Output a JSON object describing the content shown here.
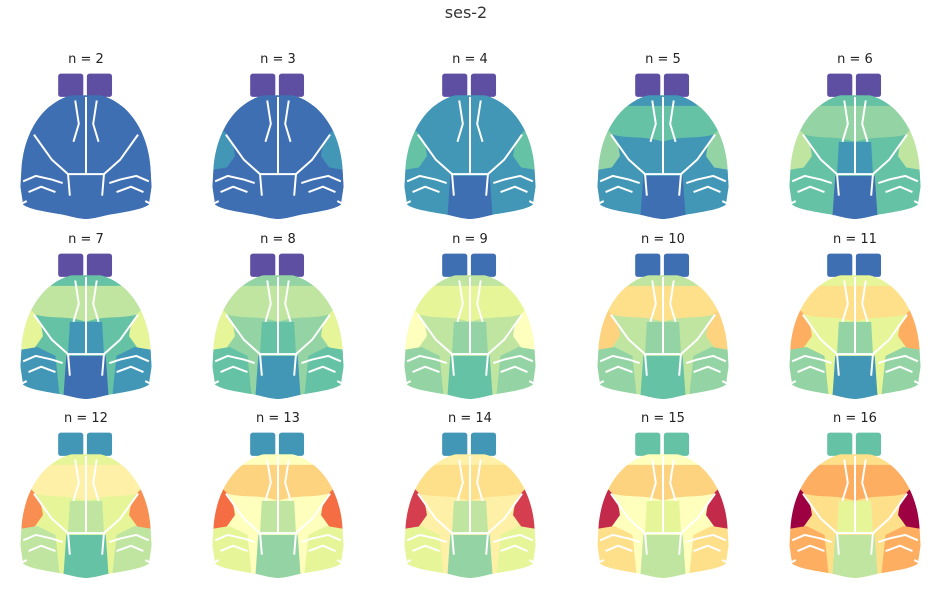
{
  "figure": {
    "title": "ses-2",
    "panels": [
      {
        "label": "n = 2",
        "colors": {
          "ob": "#5e4fa2",
          "front": "#3f6fb3",
          "mid": "#3f6fb3",
          "sideUpper": "#3f6fb3",
          "sideLower": "#3f6fb3",
          "center": "#3f6fb3",
          "post": "#3f6fb3"
        }
      },
      {
        "label": "n = 3",
        "colors": {
          "ob": "#5e4fa2",
          "front": "#3f6fb3",
          "mid": "#3f6fb3",
          "sideUpper": "#4297b7",
          "sideLower": "#3f6fb3",
          "center": "#3f6fb3",
          "post": "#3f6fb3"
        }
      },
      {
        "label": "n = 4",
        "colors": {
          "ob": "#5e4fa2",
          "front": "#4297b7",
          "mid": "#4297b7",
          "sideUpper": "#66c2a5",
          "sideLower": "#4297b7",
          "center": "#4297b7",
          "post": "#3f6fb3"
        }
      },
      {
        "label": "n = 5",
        "colors": {
          "ob": "#5e4fa2",
          "front": "#66c2a5",
          "mid": "#4297b7",
          "sideUpper": "#94d4a4",
          "sideLower": "#4297b7",
          "center": "#4297b7",
          "post": "#3f6fb3"
        }
      },
      {
        "label": "n = 6",
        "colors": {
          "ob": "#5e4fa2",
          "front": "#94d4a4",
          "mid": "#66c2a5",
          "sideUpper": "#bfe5a0",
          "sideLower": "#66c2a5",
          "center": "#4297b7",
          "post": "#3f6fb3"
        }
      },
      {
        "label": "n = 7",
        "colors": {
          "ob": "#5e4fa2",
          "front": "#bfe5a0",
          "mid": "#66c2a5",
          "sideUpper": "#e6f598",
          "sideLower": "#4297b7",
          "center": "#4297b7",
          "post": "#3f6fb3"
        }
      },
      {
        "label": "n = 8",
        "colors": {
          "ob": "#5e4fa2",
          "front": "#bfe5a0",
          "mid": "#94d4a4",
          "sideUpper": "#e6f598",
          "sideLower": "#66c2a5",
          "center": "#66c2a5",
          "post": "#4297b7"
        }
      },
      {
        "label": "n = 9",
        "colors": {
          "ob": "#3f6fb3",
          "front": "#e6f598",
          "mid": "#bfe5a0",
          "sideUpper": "#fefebd",
          "sideLower": "#94d4a4",
          "center": "#94d4a4",
          "post": "#66c2a5"
        }
      },
      {
        "label": "n = 10",
        "colors": {
          "ob": "#3f6fb3",
          "front": "#fee08b",
          "mid": "#bfe5a0",
          "sideUpper": "#fdd380",
          "sideLower": "#94d4a4",
          "center": "#94d4a4",
          "post": "#66c2a5"
        }
      },
      {
        "label": "n = 11",
        "colors": {
          "ob": "#3f6fb3",
          "front": "#fee08b",
          "mid": "#e6f598",
          "sideUpper": "#fdae61",
          "sideLower": "#94d4a4",
          "center": "#94d4a4",
          "post": "#4297b7"
        }
      },
      {
        "label": "n = 12",
        "colors": {
          "ob": "#4297b7",
          "front": "#fef0a6",
          "mid": "#e6f598",
          "sideUpper": "#f98e52",
          "sideLower": "#bfe5a0",
          "center": "#bfe5a0",
          "post": "#66c2a5"
        }
      },
      {
        "label": "n = 13",
        "colors": {
          "ob": "#4297b7",
          "front": "#fdd380",
          "mid": "#fefebd",
          "sideUpper": "#f46d43",
          "sideLower": "#e6f598",
          "center": "#bfe5a0",
          "post": "#94d4a4"
        }
      },
      {
        "label": "n = 14",
        "colors": {
          "ob": "#4297b7",
          "front": "#fee08b",
          "mid": "#fef0a6",
          "sideUpper": "#d53e4f",
          "sideLower": "#e6f598",
          "center": "#bfe5a0",
          "post": "#94d4a4"
        }
      },
      {
        "label": "n = 15",
        "colors": {
          "ob": "#66c2a5",
          "front": "#fdd380",
          "mid": "#fefebd",
          "sideUpper": "#c2294a",
          "sideLower": "#fee08b",
          "center": "#e6f598",
          "post": "#bfe5a0"
        }
      },
      {
        "label": "n = 16",
        "colors": {
          "ob": "#66c2a5",
          "front": "#fdae61",
          "mid": "#fee08b",
          "sideUpper": "#9e0142",
          "sideLower": "#fdae61",
          "center": "#e6f598",
          "post": "#bfe5a0"
        }
      }
    ]
  }
}
